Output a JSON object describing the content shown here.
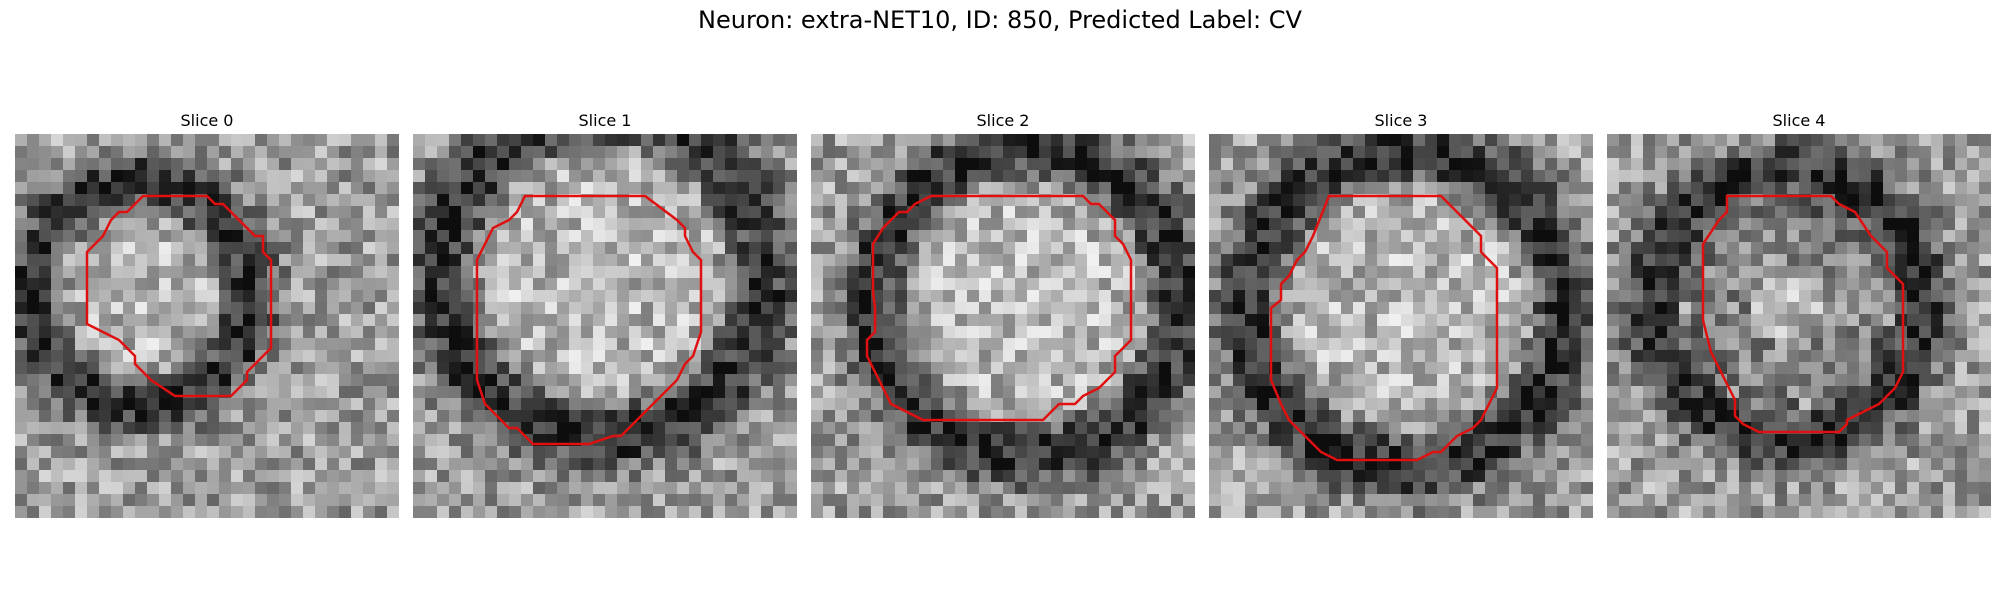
{
  "figure": {
    "title": "Neuron: extra-NET10, ID: 850, Predicted Label: CV"
  },
  "colors": {
    "contour": "#e01010",
    "background": "#ffffff"
  },
  "panels": [
    {
      "title": "Slice 0"
    },
    {
      "title": "Slice 1"
    },
    {
      "title": "Slice 2"
    },
    {
      "title": "Slice 3"
    },
    {
      "title": "Slice 4"
    }
  ]
}
